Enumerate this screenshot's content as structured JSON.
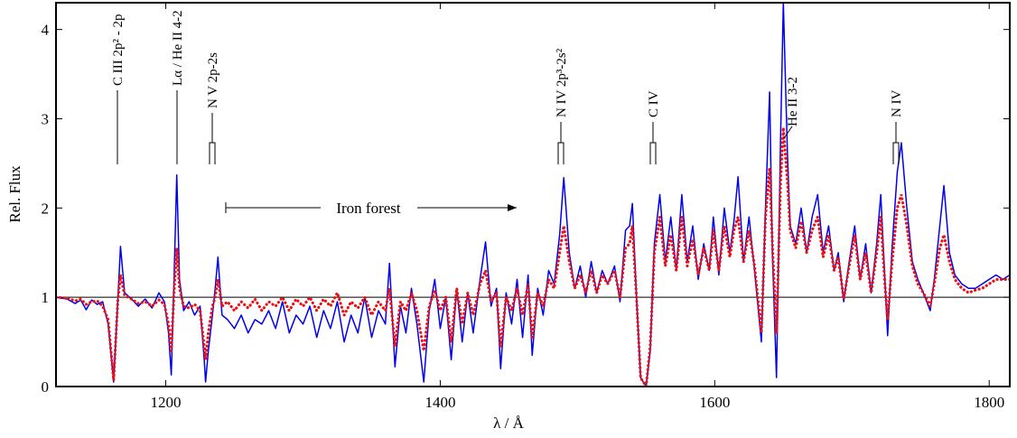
{
  "chart_data": {
    "type": "line",
    "x_label": "λ / Å",
    "y_label": "Rel. Flux",
    "xlim": [
      1120,
      1815
    ],
    "ylim": [
      0,
      4.3
    ],
    "xticks": [
      1200,
      1400,
      1600,
      1800
    ],
    "yticks": [
      0,
      1,
      2,
      3,
      4
    ],
    "hline": 1,
    "annotations": [
      {
        "text": "C III 2p² - 2p"
      },
      {
        "text": "Lα / He II 4-2"
      },
      {
        "text": "N V 2p-2s"
      },
      {
        "text": "N IV 2p³-2s²"
      },
      {
        "text": "C IV"
      },
      {
        "text": "He II 3-2"
      },
      {
        "text": "N IV"
      },
      {
        "text": "Iron forest"
      }
    ],
    "x": [
      1120,
      1128,
      1134,
      1138,
      1142,
      1146,
      1150,
      1154,
      1158,
      1162,
      1165,
      1167,
      1170,
      1175,
      1180,
      1185,
      1190,
      1195,
      1199,
      1202,
      1204,
      1206,
      1208,
      1210,
      1213,
      1217,
      1221,
      1225,
      1228,
      1229,
      1231,
      1234,
      1236,
      1238,
      1241,
      1245,
      1250,
      1255,
      1260,
      1265,
      1270,
      1275,
      1280,
      1285,
      1290,
      1295,
      1300,
      1305,
      1310,
      1315,
      1320,
      1325,
      1330,
      1335,
      1340,
      1345,
      1350,
      1355,
      1360,
      1363,
      1367,
      1371,
      1375,
      1379,
      1383,
      1388,
      1392,
      1396,
      1400,
      1404,
      1408,
      1412,
      1416,
      1420,
      1424,
      1429,
      1433,
      1437,
      1441,
      1444,
      1448,
      1452,
      1456,
      1460,
      1464,
      1467,
      1471,
      1475,
      1479,
      1483,
      1487,
      1490,
      1494,
      1498,
      1502,
      1506,
      1510,
      1514,
      1518,
      1522,
      1527,
      1531,
      1535,
      1538,
      1540,
      1543,
      1546,
      1550,
      1553,
      1556,
      1560,
      1564,
      1568,
      1572,
      1576,
      1580,
      1584,
      1588,
      1592,
      1596,
      1599,
      1603,
      1607,
      1611,
      1614,
      1617,
      1621,
      1625,
      1629,
      1634,
      1637,
      1640,
      1642,
      1645,
      1648,
      1650,
      1653,
      1655,
      1659,
      1663,
      1667,
      1671,
      1675,
      1679,
      1683,
      1687,
      1690,
      1694,
      1698,
      1702,
      1706,
      1710,
      1714,
      1718,
      1721,
      1724,
      1726,
      1729,
      1733,
      1736,
      1740,
      1744,
      1748,
      1752,
      1757,
      1760,
      1764,
      1767,
      1771,
      1775,
      1780,
      1785,
      1790,
      1795,
      1800,
      1805,
      1810,
      1815
    ],
    "series": [
      {
        "color": "#0000ee",
        "style": "solid",
        "values": [
          1.0,
          0.98,
          0.93,
          0.97,
          0.86,
          0.97,
          0.92,
          0.95,
          0.7,
          0.05,
          0.95,
          1.57,
          1.05,
          0.98,
          0.9,
          0.98,
          0.88,
          1.05,
          0.95,
          0.6,
          0.13,
          1.2,
          2.37,
          1.2,
          0.85,
          0.95,
          0.8,
          0.9,
          0.3,
          0.05,
          0.4,
          0.8,
          1.1,
          1.45,
          0.8,
          0.75,
          0.65,
          0.8,
          0.6,
          0.75,
          0.7,
          0.85,
          0.65,
          0.95,
          0.6,
          0.8,
          0.7,
          0.9,
          0.55,
          0.85,
          0.65,
          0.95,
          0.5,
          0.8,
          0.6,
          1.0,
          0.55,
          0.85,
          0.7,
          1.38,
          0.22,
          0.9,
          0.6,
          1.1,
          0.7,
          0.05,
          0.85,
          1.2,
          0.65,
          1.0,
          0.3,
          1.1,
          0.5,
          1.05,
          0.6,
          1.2,
          1.62,
          0.9,
          1.1,
          0.2,
          1.05,
          0.7,
          1.2,
          0.55,
          1.25,
          0.35,
          1.1,
          0.8,
          1.3,
          1.15,
          1.7,
          2.34,
          1.5,
          1.1,
          1.35,
          1.0,
          1.4,
          1.05,
          1.3,
          1.15,
          1.35,
          0.95,
          1.75,
          1.8,
          2.05,
          1.0,
          0.1,
          0.0,
          0.4,
          1.6,
          2.15,
          1.4,
          1.9,
          1.3,
          2.15,
          1.4,
          1.8,
          1.2,
          1.6,
          1.3,
          1.9,
          1.25,
          2.0,
          1.5,
          1.85,
          2.35,
          1.4,
          1.9,
          1.3,
          0.5,
          2.0,
          3.3,
          1.5,
          0.1,
          2.8,
          4.3,
          2.6,
          1.8,
          1.6,
          2.0,
          1.5,
          1.9,
          2.15,
          1.5,
          1.8,
          1.3,
          1.5,
          0.95,
          1.4,
          1.8,
          1.2,
          1.6,
          1.05,
          1.6,
          2.15,
          1.2,
          0.57,
          1.5,
          2.4,
          2.73,
          2.0,
          1.4,
          1.2,
          1.05,
          0.85,
          1.2,
          1.8,
          2.25,
          1.5,
          1.25,
          1.15,
          1.1,
          1.1,
          1.15,
          1.2,
          1.25,
          1.2,
          1.25
        ]
      },
      {
        "color": "#ee1111",
        "style": "dotted",
        "values": [
          1.0,
          0.99,
          0.96,
          0.98,
          0.92,
          0.95,
          0.96,
          0.9,
          0.75,
          0.07,
          0.95,
          1.25,
          1.02,
          0.98,
          0.93,
          0.95,
          0.9,
          0.97,
          0.92,
          0.7,
          0.4,
          1.05,
          1.55,
          1.1,
          0.9,
          0.88,
          0.92,
          0.85,
          0.45,
          0.3,
          0.6,
          0.9,
          1.0,
          1.2,
          0.9,
          0.95,
          0.85,
          0.95,
          0.88,
          0.98,
          0.85,
          0.95,
          0.9,
          1.0,
          0.85,
          0.98,
          0.9,
          1.0,
          0.85,
          0.98,
          0.9,
          1.05,
          0.8,
          0.95,
          0.88,
          1.0,
          0.8,
          0.95,
          0.85,
          1.1,
          0.45,
          0.95,
          0.85,
          1.05,
          0.85,
          0.4,
          0.9,
          1.08,
          0.85,
          1.0,
          0.5,
          1.1,
          0.7,
          1.05,
          0.8,
          1.15,
          1.3,
          0.95,
          1.05,
          0.45,
          1.0,
          0.85,
          1.1,
          0.8,
          1.15,
          0.55,
          1.05,
          0.9,
          1.2,
          1.1,
          1.5,
          1.8,
          1.4,
          1.1,
          1.25,
          1.05,
          1.3,
          1.05,
          1.25,
          1.15,
          1.3,
          1.0,
          1.55,
          1.6,
          1.8,
          1.0,
          0.1,
          0.0,
          0.45,
          1.5,
          1.9,
          1.35,
          1.7,
          1.3,
          1.9,
          1.35,
          1.65,
          1.25,
          1.55,
          1.3,
          1.75,
          1.3,
          1.8,
          1.45,
          1.75,
          1.9,
          1.4,
          1.75,
          1.35,
          0.6,
          1.9,
          2.45,
          1.6,
          0.6,
          2.3,
          2.9,
          2.3,
          1.75,
          1.55,
          1.85,
          1.5,
          1.75,
          1.9,
          1.45,
          1.7,
          1.3,
          1.45,
          0.98,
          1.35,
          1.7,
          1.2,
          1.5,
          1.05,
          1.5,
          1.9,
          1.15,
          0.75,
          1.35,
          2.0,
          2.15,
          1.8,
          1.35,
          1.15,
          1.05,
          0.9,
          1.15,
          1.55,
          1.7,
          1.4,
          1.2,
          1.1,
          1.05,
          1.08,
          1.1,
          1.15,
          1.2,
          1.2,
          1.2
        ]
      }
    ]
  }
}
